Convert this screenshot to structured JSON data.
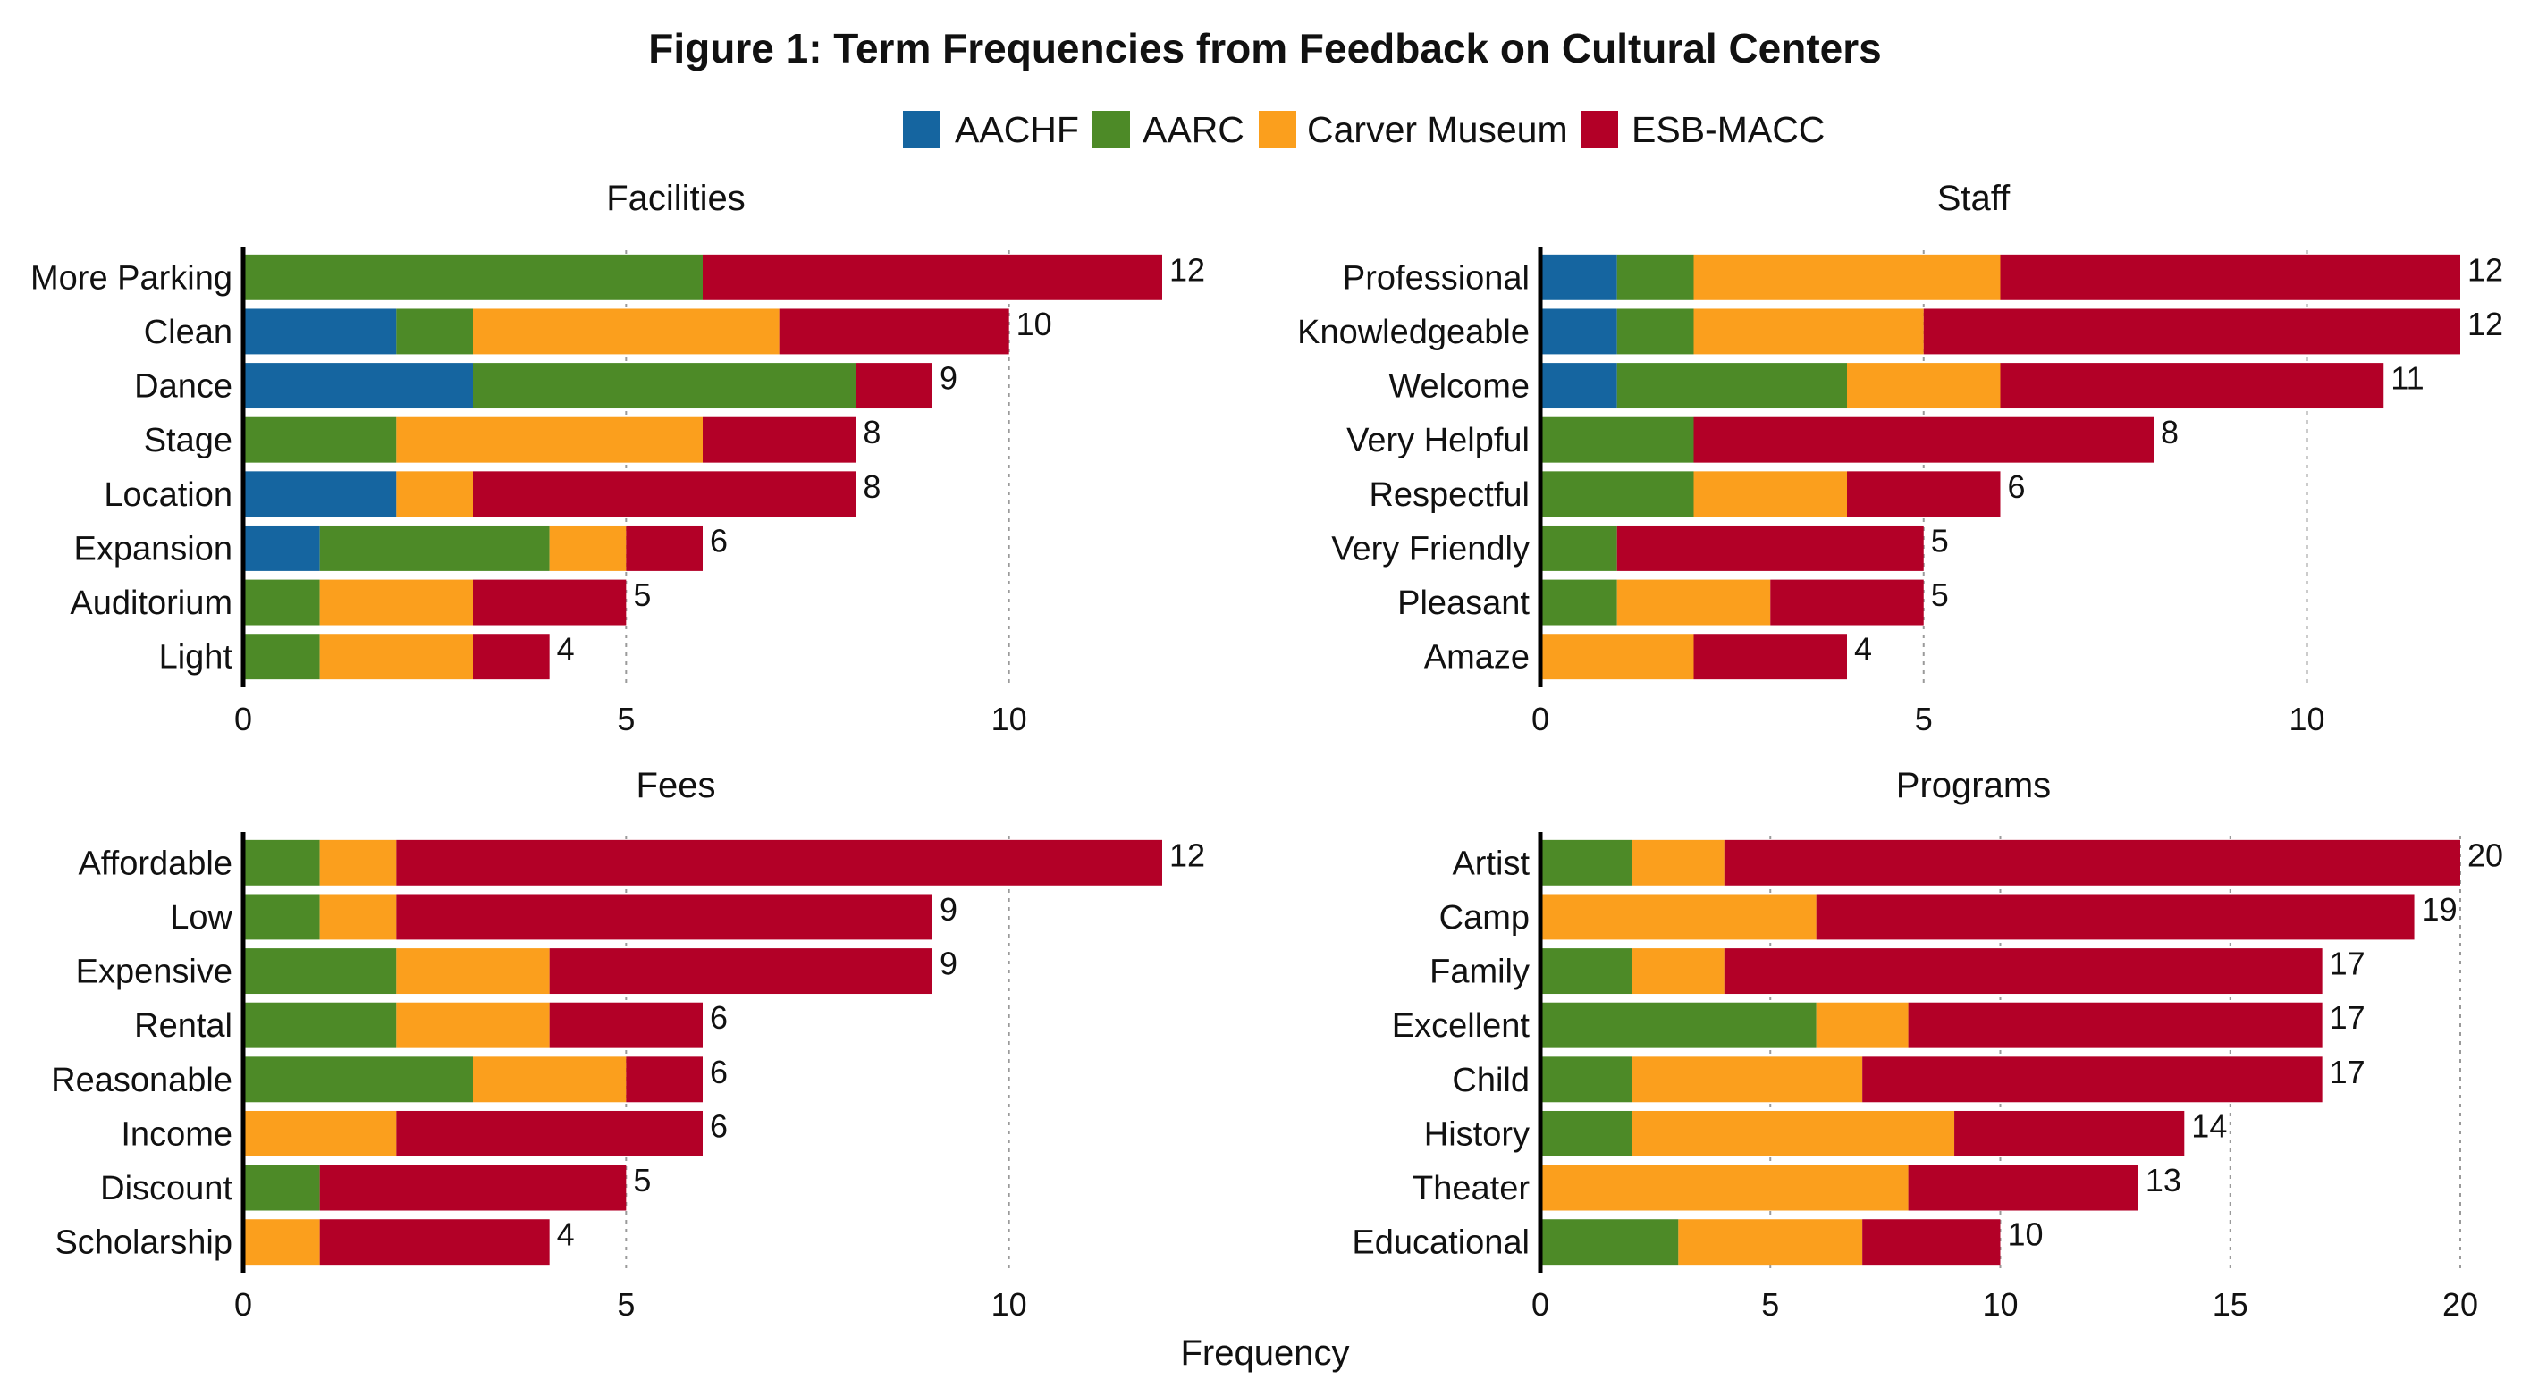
{
  "chart_data": {
    "type": "bar",
    "orientation": "horizontal",
    "stacked": true,
    "title": "Figure 1: Term Frequencies from Feedback on Cultural Centers",
    "xlabel": "Frequency",
    "legend": {
      "position": "top",
      "entries": [
        {
          "name": "AACHF",
          "color": "#1565a0"
        },
        {
          "name": "AARC",
          "color": "#4d8a27"
        },
        {
          "name": "Carver Museum",
          "color": "#fb9f1d"
        },
        {
          "name": "ESB-MACC",
          "color": "#b30027"
        }
      ]
    },
    "panels": [
      {
        "title": "Facilities",
        "xlim": [
          0,
          12
        ],
        "xticks": [
          0,
          5,
          10
        ],
        "categories": [
          "More Parking",
          "Clean",
          "Dance",
          "Stage",
          "Location",
          "Expansion",
          "Auditorium",
          "Light"
        ],
        "series": [
          {
            "name": "AACHF",
            "values": [
              0,
              2,
              3,
              0,
              2,
              1,
              0,
              0
            ]
          },
          {
            "name": "AARC",
            "values": [
              6,
              1,
              5,
              2,
              0,
              3,
              1,
              1
            ]
          },
          {
            "name": "Carver Museum",
            "values": [
              0,
              4,
              0,
              4,
              1,
              1,
              2,
              2
            ]
          },
          {
            "name": "ESB-MACC",
            "values": [
              6,
              3,
              1,
              2,
              5,
              1,
              2,
              1
            ]
          }
        ],
        "totals": [
          12,
          10,
          9,
          8,
          8,
          6,
          5,
          4
        ]
      },
      {
        "title": "Staff",
        "xlim": [
          0,
          12
        ],
        "xticks": [
          0,
          5,
          10
        ],
        "categories": [
          "Professional",
          "Knowledgeable",
          "Welcome",
          "Very Helpful",
          "Respectful",
          "Very Friendly",
          "Pleasant",
          "Amaze"
        ],
        "series": [
          {
            "name": "AACHF",
            "values": [
              1,
              1,
              1,
              0,
              0,
              0,
              0,
              0
            ]
          },
          {
            "name": "AARC",
            "values": [
              1,
              1,
              3,
              2,
              2,
              1,
              1,
              0
            ]
          },
          {
            "name": "Carver Museum",
            "values": [
              4,
              3,
              2,
              0,
              2,
              0,
              2,
              2
            ]
          },
          {
            "name": "ESB-MACC",
            "values": [
              6,
              7,
              5,
              6,
              2,
              4,
              2,
              2
            ]
          }
        ],
        "totals": [
          12,
          12,
          11,
          8,
          6,
          5,
          5,
          4
        ]
      },
      {
        "title": "Fees",
        "xlim": [
          0,
          12
        ],
        "xticks": [
          0,
          5,
          10
        ],
        "categories": [
          "Affordable",
          "Low",
          "Expensive",
          "Rental",
          "Reasonable",
          "Income",
          "Discount",
          "Scholarship"
        ],
        "series": [
          {
            "name": "AACHF",
            "values": [
              0,
              0,
              0,
              0,
              0,
              0,
              0,
              0
            ]
          },
          {
            "name": "AARC",
            "values": [
              1,
              1,
              2,
              2,
              3,
              0,
              1,
              0
            ]
          },
          {
            "name": "Carver Museum",
            "values": [
              1,
              1,
              2,
              2,
              2,
              2,
              0,
              1
            ]
          },
          {
            "name": "ESB-MACC",
            "values": [
              10,
              7,
              5,
              2,
              1,
              4,
              4,
              3
            ]
          }
        ],
        "totals": [
          12,
          9,
          9,
          6,
          6,
          6,
          5,
          4
        ]
      },
      {
        "title": "Programs",
        "xlim": [
          0,
          20
        ],
        "xticks": [
          0,
          5,
          10,
          15,
          20
        ],
        "categories": [
          "Artist",
          "Camp",
          "Family",
          "Excellent",
          "Child",
          "History",
          "Theater",
          "Educational"
        ],
        "series": [
          {
            "name": "AACHF",
            "values": [
              0,
              0,
              0,
              0,
              0,
              0,
              0,
              0
            ]
          },
          {
            "name": "AARC",
            "values": [
              2,
              0,
              2,
              6,
              2,
              2,
              0,
              3
            ]
          },
          {
            "name": "Carver Museum",
            "values": [
              2,
              6,
              2,
              2,
              5,
              7,
              8,
              4
            ]
          },
          {
            "name": "ESB-MACC",
            "values": [
              16,
              13,
              13,
              9,
              10,
              5,
              5,
              3
            ]
          }
        ],
        "totals": [
          20,
          19,
          17,
          17,
          17,
          14,
          13,
          10
        ]
      }
    ]
  }
}
